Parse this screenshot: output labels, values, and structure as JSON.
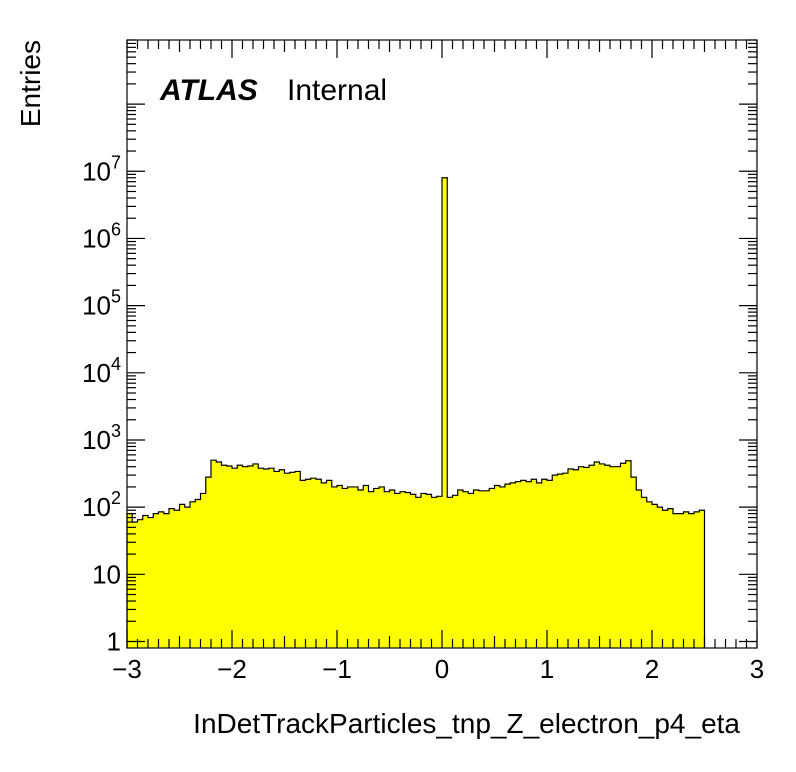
{
  "chart_data": {
    "type": "bar",
    "xlabel": "InDetTrackParticles_tnp_Z_electron_p4_eta",
    "ylabel": "Entries",
    "yscale": "log",
    "xlim": [
      -3,
      3
    ],
    "ylim": [
      0.8,
      900000000
    ],
    "grid": false,
    "legend": "none",
    "label_brand": "ATLAS",
    "label_status": "Internal",
    "fill_color": "#ffff00",
    "line_color": "#000000",
    "bin_width": 0.05,
    "x_start": -3,
    "x_ticks": [
      {
        "value": -3,
        "label": "−3"
      },
      {
        "value": -2,
        "label": "−2"
      },
      {
        "value": -1,
        "label": "−1"
      },
      {
        "value": 0,
        "label": "0"
      },
      {
        "value": 1,
        "label": "1"
      },
      {
        "value": 2,
        "label": "2"
      },
      {
        "value": 3,
        "label": "3"
      }
    ],
    "y_ticks": [
      {
        "value": 1,
        "base": "1",
        "exp": ""
      },
      {
        "value": 10,
        "base": "10",
        "exp": ""
      },
      {
        "value": 100,
        "base": "10",
        "exp": "2"
      },
      {
        "value": 1000,
        "base": "10",
        "exp": "3"
      },
      {
        "value": 10000,
        "base": "10",
        "exp": "4"
      },
      {
        "value": 100000,
        "base": "10",
        "exp": "5"
      },
      {
        "value": 1000000,
        "base": "10",
        "exp": "6"
      },
      {
        "value": 10000000,
        "base": "10",
        "exp": "7"
      }
    ],
    "values": [
      80,
      60,
      65,
      75,
      70,
      80,
      85,
      80,
      95,
      90,
      110,
      100,
      120,
      130,
      160,
      280,
      500,
      470,
      420,
      410,
      380,
      420,
      400,
      410,
      440,
      380,
      370,
      380,
      340,
      360,
      320,
      330,
      340,
      250,
      260,
      270,
      260,
      230,
      250,
      200,
      210,
      190,
      200,
      200,
      180,
      210,
      170,
      190,
      200,
      170,
      180,
      160,
      170,
      165,
      155,
      140,
      160,
      155,
      140,
      145,
      8000000,
      140,
      150,
      180,
      170,
      160,
      180,
      175,
      175,
      190,
      210,
      200,
      220,
      230,
      240,
      250,
      240,
      260,
      230,
      260,
      250,
      300,
      310,
      320,
      370,
      360,
      400,
      390,
      420,
      470,
      440,
      420,
      400,
      400,
      450,
      490,
      280,
      180,
      140,
      120,
      110,
      100,
      90,
      95,
      80,
      80,
      85,
      80,
      85,
      90
    ]
  }
}
